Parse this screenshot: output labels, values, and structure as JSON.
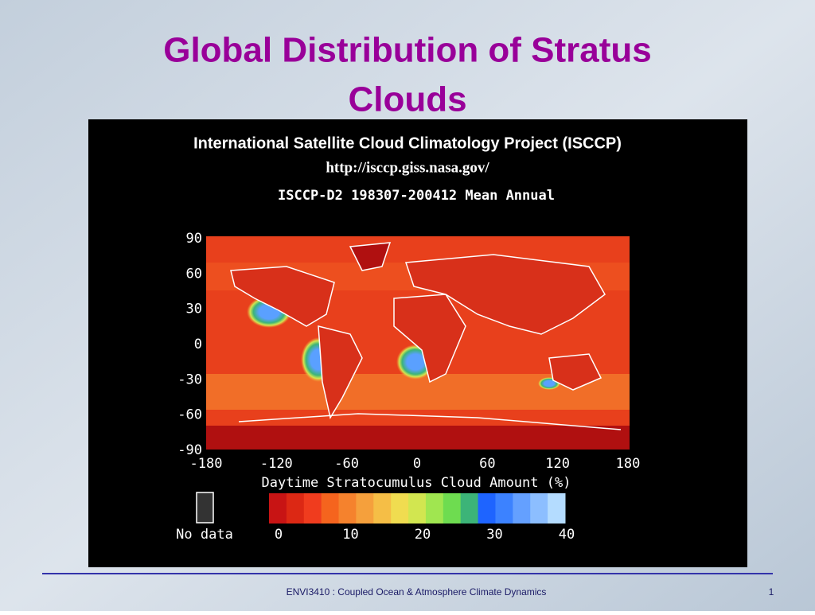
{
  "slide": {
    "title_lines": [
      "Global Distribution of Stratus",
      "Clouds"
    ],
    "image": {
      "heading": "International Satellite Cloud Climatology Project (ISCCP)",
      "url": "http://isccp.giss.nasa.gov/",
      "map_title": "ISCCP-D2 198307-200412 Mean Annual",
      "lat_ticks": [
        90,
        60,
        30,
        0,
        -30,
        -60,
        -90
      ],
      "lon_ticks": [
        -180,
        -120,
        -60,
        0,
        60,
        120,
        180
      ],
      "colorbar_title": "Daytime Stratocumulus Cloud Amount (%)",
      "colorbar_ticks": [
        0,
        10,
        20,
        30,
        40
      ],
      "colorbar_colors": [
        "#c81414",
        "#dc2814",
        "#f03c1e",
        "#f5641e",
        "#f5822d",
        "#f5a03c",
        "#f5be46",
        "#f0dc50",
        "#d2e650",
        "#a0e650",
        "#6edc50",
        "#3cb478",
        "#1e64ff",
        "#3c82ff",
        "#64a0ff",
        "#8cbeff",
        "#b4dcff"
      ],
      "no_data": "No data"
    },
    "footer": "ENVI3410 : Coupled Ocean & Atmosphere Climate Dynamics",
    "page_number": "1"
  }
}
